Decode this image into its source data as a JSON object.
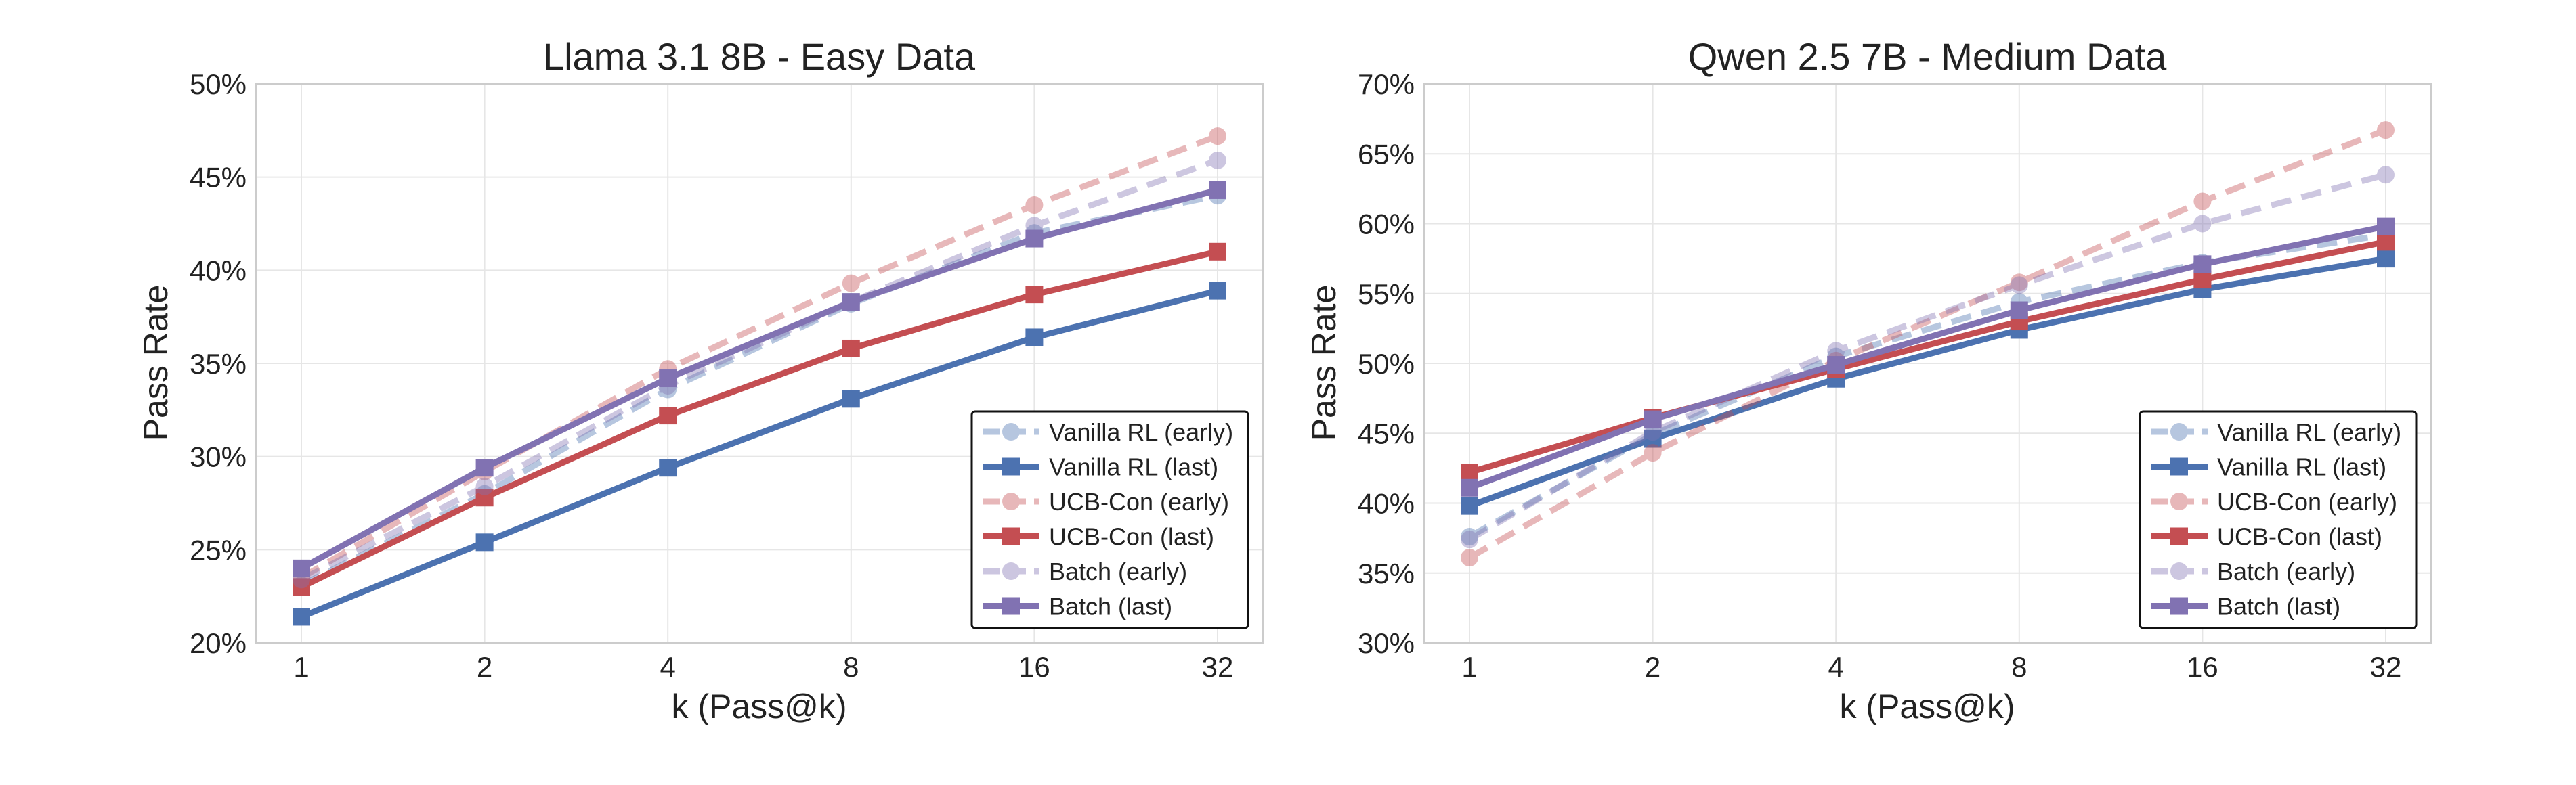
{
  "colors": {
    "vanilla": "#4C72B0",
    "ucb": "#C44E52",
    "batch": "#8172B2",
    "grid": "#e6e6e6",
    "frame": "#cccccc"
  },
  "chart_data": [
    {
      "type": "line",
      "title": "Llama 3.1 8B - Easy Data",
      "xlabel": "k (Pass@k)",
      "ylabel": "Pass Rate",
      "categories": [
        "1",
        "2",
        "4",
        "8",
        "16",
        "32"
      ],
      "ylim": [
        0.2,
        0.5
      ],
      "yticks": [
        {
          "value": 0.2,
          "label": "20%"
        },
        {
          "value": 0.25,
          "label": "25%"
        },
        {
          "value": 0.3,
          "label": "30%"
        },
        {
          "value": 0.35,
          "label": "35%"
        },
        {
          "value": 0.4,
          "label": "40%"
        },
        {
          "value": 0.45,
          "label": "45%"
        },
        {
          "value": 0.5,
          "label": "50%"
        }
      ],
      "legend_position": "lower-right",
      "series": [
        {
          "name": "Vanilla RL (early)",
          "color_key": "vanilla",
          "style": "dashed",
          "marker": "circle",
          "values": [
            0.231,
            0.28,
            0.336,
            0.382,
            0.42,
            0.44
          ]
        },
        {
          "name": "Vanilla RL (last)",
          "color_key": "vanilla",
          "style": "solid",
          "marker": "square",
          "values": [
            0.214,
            0.254,
            0.294,
            0.331,
            0.364,
            0.389
          ]
        },
        {
          "name": "UCB-Con (early)",
          "color_key": "ucb",
          "style": "dashed",
          "marker": "circle",
          "values": [
            0.235,
            0.292,
            0.347,
            0.393,
            0.435,
            0.472
          ]
        },
        {
          "name": "UCB-Con (last)",
          "color_key": "ucb",
          "style": "solid",
          "marker": "square",
          "values": [
            0.23,
            0.278,
            0.322,
            0.358,
            0.387,
            0.41
          ]
        },
        {
          "name": "Batch (early)",
          "color_key": "batch",
          "style": "dashed",
          "marker": "circle",
          "values": [
            0.234,
            0.284,
            0.338,
            0.383,
            0.424,
            0.459
          ]
        },
        {
          "name": "Batch (last)",
          "color_key": "batch",
          "style": "solid",
          "marker": "square",
          "values": [
            0.24,
            0.294,
            0.342,
            0.383,
            0.417,
            0.443
          ]
        }
      ]
    },
    {
      "type": "line",
      "title": "Qwen 2.5 7B - Medium Data",
      "xlabel": "k (Pass@k)",
      "ylabel": "Pass Rate",
      "categories": [
        "1",
        "2",
        "4",
        "8",
        "16",
        "32"
      ],
      "ylim": [
        0.3,
        0.7
      ],
      "yticks": [
        {
          "value": 0.3,
          "label": "30%"
        },
        {
          "value": 0.35,
          "label": "35%"
        },
        {
          "value": 0.4,
          "label": "40%"
        },
        {
          "value": 0.45,
          "label": "45%"
        },
        {
          "value": 0.5,
          "label": "50%"
        },
        {
          "value": 0.55,
          "label": "55%"
        },
        {
          "value": 0.6,
          "label": "60%"
        },
        {
          "value": 0.65,
          "label": "65%"
        },
        {
          "value": 0.7,
          "label": "70%"
        }
      ],
      "legend_position": "lower-right",
      "series": [
        {
          "name": "Vanilla RL (early)",
          "color_key": "vanilla",
          "style": "dashed",
          "marker": "circle",
          "values": [
            0.376,
            0.449,
            0.505,
            0.544,
            0.572,
            0.592
          ]
        },
        {
          "name": "Vanilla RL (last)",
          "color_key": "vanilla",
          "style": "solid",
          "marker": "square",
          "values": [
            0.398,
            0.446,
            0.489,
            0.524,
            0.553,
            0.575
          ]
        },
        {
          "name": "UCB-Con (early)",
          "color_key": "ucb",
          "style": "dashed",
          "marker": "circle",
          "values": [
            0.361,
            0.436,
            0.502,
            0.558,
            0.616,
            0.667
          ]
        },
        {
          "name": "UCB-Con (last)",
          "color_key": "ucb",
          "style": "solid",
          "marker": "square",
          "values": [
            0.422,
            0.461,
            0.496,
            0.53,
            0.56,
            0.587
          ]
        },
        {
          "name": "Batch (early)",
          "color_key": "batch",
          "style": "dashed",
          "marker": "circle",
          "values": [
            0.374,
            0.451,
            0.509,
            0.556,
            0.6,
            0.635
          ]
        },
        {
          "name": "Batch (last)",
          "color_key": "batch",
          "style": "solid",
          "marker": "square",
          "values": [
            0.411,
            0.46,
            0.499,
            0.538,
            0.571,
            0.598
          ]
        }
      ]
    }
  ]
}
